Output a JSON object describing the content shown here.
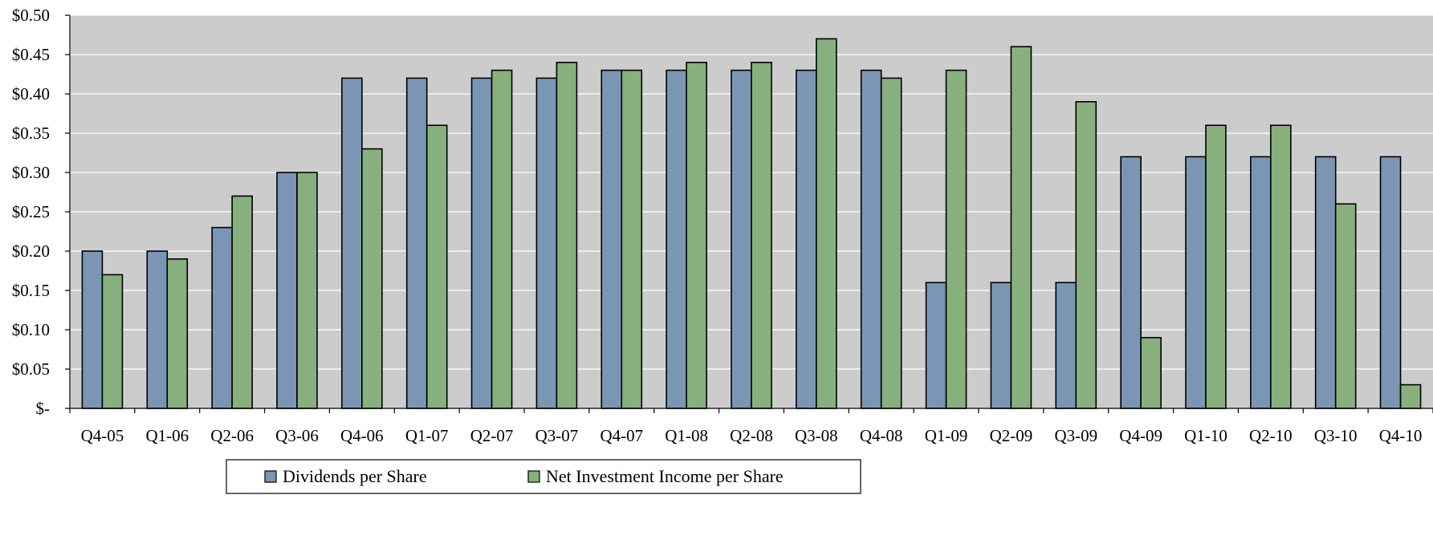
{
  "chart_data": {
    "type": "bar",
    "title": "",
    "xlabel": "",
    "ylabel": "",
    "categories": [
      "Q4-05",
      "Q1-06",
      "Q2-06",
      "Q3-06",
      "Q4-06",
      "Q1-07",
      "Q2-07",
      "Q3-07",
      "Q4-07",
      "Q1-08",
      "Q2-08",
      "Q3-08",
      "Q4-08",
      "Q1-09",
      "Q2-09",
      "Q3-09",
      "Q4-09",
      "Q1-10",
      "Q2-10",
      "Q3-10",
      "Q4-10"
    ],
    "series": [
      {
        "name": "Dividends per Share",
        "color": "#7b96b5",
        "values": [
          0.2,
          0.2,
          0.23,
          0.3,
          0.42,
          0.42,
          0.42,
          0.42,
          0.43,
          0.43,
          0.43,
          0.43,
          0.43,
          0.16,
          0.16,
          0.16,
          0.32,
          0.32,
          0.32,
          0.32,
          0.32
        ]
      },
      {
        "name": "Net Investment Income per Share",
        "color": "#88b07e",
        "values": [
          0.17,
          0.19,
          0.27,
          0.3,
          0.33,
          0.36,
          0.43,
          0.44,
          0.43,
          0.44,
          0.44,
          0.47,
          0.42,
          0.43,
          0.46,
          0.39,
          0.09,
          0.36,
          0.36,
          0.26,
          0.03
        ]
      }
    ],
    "ylim": [
      0,
      0.5
    ],
    "yticks": [
      0,
      0.05,
      0.1,
      0.15,
      0.2,
      0.25,
      0.3,
      0.35,
      0.4,
      0.45,
      0.5
    ],
    "ytick_labels": [
      "$-",
      "$0.05",
      "$0.10",
      "$0.15",
      "$0.20",
      "$0.25",
      "$0.30",
      "$0.35",
      "$0.40",
      "$0.45",
      "$0.50"
    ],
    "grid": true,
    "plot_background": "#cccccc",
    "legend_position": "bottom"
  }
}
